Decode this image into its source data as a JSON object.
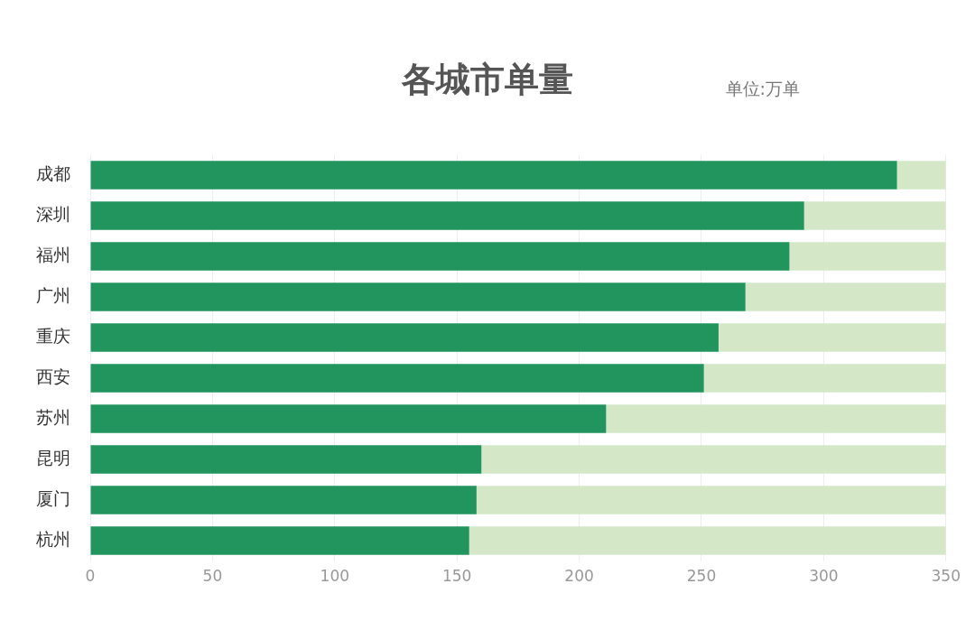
{
  "chart_data": {
    "type": "bar",
    "title": "各城市单量",
    "subtitle": "单位:万单",
    "orientation": "horizontal",
    "stacked": true,
    "categories": [
      "成都",
      "深圳",
      "福州",
      "广州",
      "重庆",
      "西安",
      "苏州",
      "昆明",
      "厦门",
      "杭州"
    ],
    "series": [
      {
        "color": "#22955e",
        "values": [
          330,
          292,
          286,
          268,
          257,
          251,
          211,
          160,
          158,
          155
        ]
      },
      {
        "color": "#d4e8c8",
        "values": [
          20,
          58,
          64,
          82,
          93,
          99,
          139,
          190,
          192,
          195
        ]
      }
    ],
    "xlim": [
      0,
      350
    ],
    "xticks": [
      0,
      50,
      100,
      150,
      200,
      250,
      300,
      350
    ],
    "grid": "x",
    "legend": false
  }
}
